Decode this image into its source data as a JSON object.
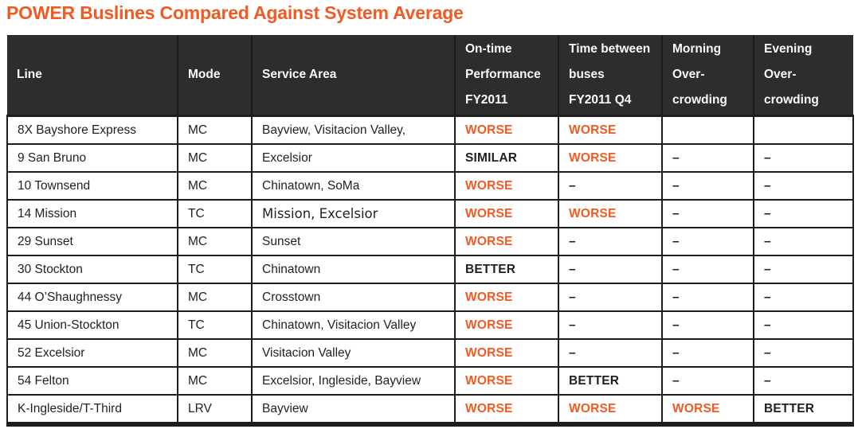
{
  "title": "POWER Buslines Compared Against System Average",
  "colors": {
    "accent_orange": "#F15A22",
    "header_background": "#2D2D2D",
    "header_divider": "#191919",
    "header_text": "#FBFAF4",
    "body_text": "#231F20",
    "grid_border": "#1D1D1B"
  },
  "table": {
    "columns": [
      {
        "key": "line",
        "label": "Line"
      },
      {
        "key": "mode",
        "label": "Mode"
      },
      {
        "key": "service_area",
        "label": "Service Area"
      },
      {
        "key": "on_time",
        "label": "On-time\nPerformance\nFY2011"
      },
      {
        "key": "headway",
        "label": "Time between\nbuses\nFY2011 Q4"
      },
      {
        "key": "morning",
        "label": "Morning\nOver-\ncrowding"
      },
      {
        "key": "evening",
        "label": "Evening\nOver-\ncrowding"
      }
    ],
    "status_columns": [
      "on_time",
      "headway",
      "morning",
      "evening"
    ],
    "status_colors": {
      "WORSE": "#F15A22",
      "SIMILAR": "#231F20",
      "BETTER": "#231F20",
      "–": "#231F20"
    },
    "rows": [
      {
        "line": "8X Bayshore Express",
        "mode": "MC",
        "service_area": "Bayview, Visitacion Valley,",
        "on_time": "WORSE",
        "headway": "WORSE",
        "morning": "",
        "evening": ""
      },
      {
        "line": "9 San Bruno",
        "mode": "MC",
        "service_area": "Excelsior",
        "on_time": "SIMILAR",
        "headway": "WORSE",
        "morning": "–",
        "evening": "–"
      },
      {
        "line": "10 Townsend",
        "mode": "MC",
        "service_area": "Chinatown, SoMa",
        "on_time": "WORSE",
        "headway": "–",
        "morning": "–",
        "evening": "–"
      },
      {
        "line": "14 Mission",
        "mode": "TC",
        "service_area": "Mission, Excelsior",
        "alt_font": true,
        "on_time": "WORSE",
        "headway": "WORSE",
        "morning": "–",
        "evening": "–"
      },
      {
        "line": "29 Sunset",
        "mode": "MC",
        "service_area": "Sunset",
        "on_time": "WORSE",
        "headway": "–",
        "morning": "–",
        "evening": "–"
      },
      {
        "line": "30 Stockton",
        "mode": "TC",
        "service_area": "Chinatown",
        "on_time": "BETTER",
        "headway": "–",
        "morning": "–",
        "evening": "–"
      },
      {
        "line": "44 O’Shaughnessy",
        "mode": "MC",
        "service_area": "Crosstown",
        "on_time": "WORSE",
        "headway": "–",
        "morning": "–",
        "evening": "–"
      },
      {
        "line": "45 Union-Stockton",
        "mode": "TC",
        "service_area": "Chinatown, Visitacion Valley",
        "on_time": "WORSE",
        "headway": "–",
        "morning": "–",
        "evening": "–"
      },
      {
        "line": "52 Excelsior",
        "mode": "MC",
        "service_area": "Visitacion Valley",
        "on_time": "WORSE",
        "headway": "–",
        "morning": "–",
        "evening": "–"
      },
      {
        "line": "54 Felton",
        "mode": "MC",
        "service_area": "Excelsior, Ingleside, Bayview",
        "on_time": "WORSE",
        "headway": "BETTER",
        "morning": "–",
        "evening": "–"
      },
      {
        "line": "K-Ingleside/T-Third",
        "mode": "LRV",
        "service_area": "Bayview",
        "on_time": "WORSE",
        "headway": "WORSE",
        "morning": "WORSE",
        "evening": "BETTER"
      }
    ]
  }
}
